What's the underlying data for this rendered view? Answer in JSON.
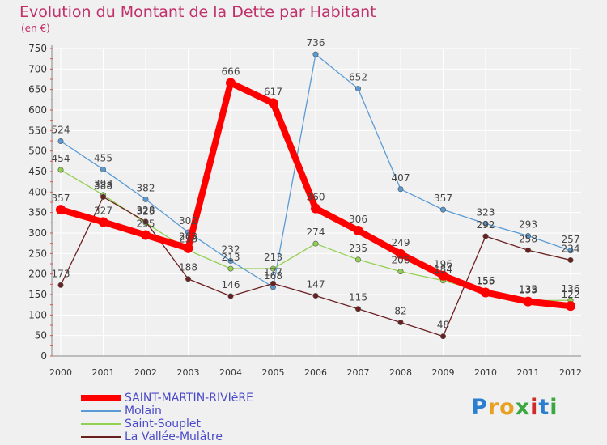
{
  "brand": {
    "letters": [
      "P",
      "r",
      "o",
      "x",
      "i",
      "t",
      "i"
    ],
    "colors": [
      "#2a7fd0",
      "#e8a020",
      "#e8a020",
      "#3aa840",
      "#d02a2a",
      "#2a7fd0",
      "#3aa840"
    ]
  },
  "chart_data": {
    "type": "line",
    "title": "Evolution du Montant de la Dette par Habitant",
    "subtitle": "(en €)",
    "xlabel": "",
    "ylabel": "",
    "ylim": [
      0,
      750
    ],
    "yticks": [
      0,
      50,
      100,
      150,
      200,
      250,
      300,
      350,
      400,
      450,
      500,
      550,
      600,
      650,
      700,
      750
    ],
    "grid": true,
    "legend_position": "bottom-left",
    "x": [
      "2000",
      "2001",
      "2002",
      "2003",
      "2004",
      "2005",
      "2006",
      "2007",
      "2008",
      "2009",
      "2010",
      "2011",
      "2012"
    ],
    "series": [
      {
        "name": "Molain",
        "color": "#5b9bd5",
        "values": [
          524,
          455,
          382,
          302,
          232,
          168,
          736,
          652,
          407,
          357,
          323,
          293,
          257
        ]
      },
      {
        "name": "Saint-Souplet",
        "color": "#92d050",
        "values": [
          454,
          393,
          325,
          258,
          213,
          213,
          274,
          235,
          206,
          184,
          156,
          135,
          136
        ]
      },
      {
        "name": "La Vallée-Mulâtre",
        "color": "#6b2020",
        "values": [
          173,
          388,
          328,
          188,
          146,
          177,
          147,
          115,
          82,
          48,
          292,
          258,
          234
        ]
      },
      {
        "name": "SAINT-MARTIN-RIVIèRE",
        "color": "#ff0000",
        "values": [
          357,
          327,
          295,
          263,
          666,
          617,
          360,
          306,
          249,
          196,
          155,
          133,
          122
        ]
      }
    ]
  }
}
